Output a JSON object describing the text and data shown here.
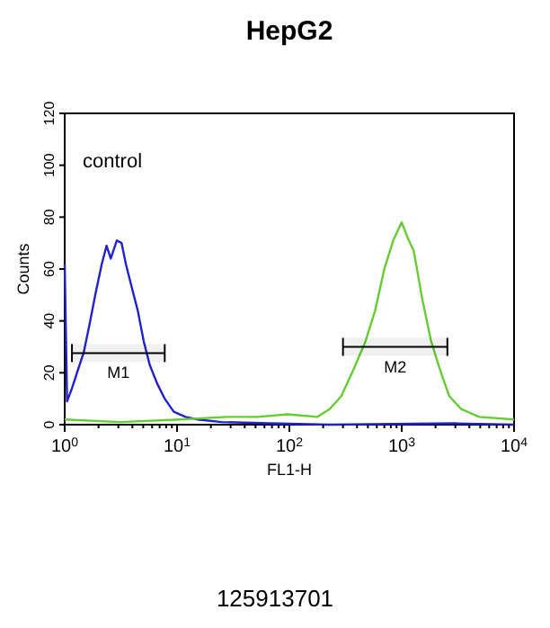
{
  "chart_data": {
    "type": "line",
    "title": "HepG2",
    "xlabel": "FL1-H",
    "ylabel": "Counts",
    "log": "x",
    "grid": false,
    "marker": "none",
    "line_style": "solid",
    "xlim": [
      1,
      10000
    ],
    "xticks": [
      {
        "value": 1,
        "label": "10$^{0}$"
      },
      {
        "value": 2,
        "label": null
      },
      {
        "value": 3,
        "label": null
      },
      {
        "value": 4,
        "label": null
      },
      {
        "value": 5,
        "label": null
      },
      {
        "value": 6,
        "label": null
      },
      {
        "value": 7,
        "label": null
      },
      {
        "value": 8,
        "label": null
      },
      {
        "value": 9,
        "label": null
      },
      {
        "value": 10,
        "label": "10$^{1}$"
      },
      {
        "value": 20,
        "label": null
      },
      {
        "value": 30,
        "label": null
      },
      {
        "value": 40,
        "label": null
      },
      {
        "value": 50,
        "label": null
      },
      {
        "value": 60,
        "label": null
      },
      {
        "value": 70,
        "label": null
      },
      {
        "value": 80,
        "label": null
      },
      {
        "value": 90,
        "label": null
      },
      {
        "value": 100,
        "label": "10$^{2}$"
      },
      {
        "value": 200,
        "label": null
      },
      {
        "value": 300,
        "label": null
      },
      {
        "value": 400,
        "label": null
      },
      {
        "value": 500,
        "label": null
      },
      {
        "value": 600,
        "label": null
      },
      {
        "value": 700,
        "label": null
      },
      {
        "value": 800,
        "label": null
      },
      {
        "value": 900,
        "label": null
      },
      {
        "value": 1000,
        "label": "10$^{3}$"
      },
      {
        "value": 2000,
        "label": null
      },
      {
        "value": 3000,
        "label": null
      },
      {
        "value": 4000,
        "label": null
      },
      {
        "value": 5000,
        "label": null
      },
      {
        "value": 6000,
        "label": null
      },
      {
        "value": 7000,
        "label": null
      },
      {
        "value": 8000,
        "label": null
      },
      {
        "value": 9000,
        "label": null
      },
      {
        "value": 10000,
        "label": "10$^{4}$"
      }
    ],
    "ylim": [
      0,
      120
    ],
    "yticks": [
      0,
      20,
      40,
      60,
      80,
      100,
      120
    ],
    "series": [
      {
        "color": "#2222cc",
        "x": [
          1,
          1.05,
          1.16,
          1.31,
          1.48,
          1.67,
          1.89,
          2.14,
          2.36,
          2.57,
          2.91,
          3.21,
          3.5,
          3.95,
          4.47,
          5.06,
          5.72,
          6.63,
          7.77,
          9.35,
          11.9,
          15.3,
          25,
          66,
          228,
          3000,
          10000
        ],
        "values": [
          62,
          9,
          14,
          21,
          28,
          39,
          51,
          62,
          69,
          64,
          71,
          70,
          62,
          53,
          44,
          32,
          23,
          16,
          10,
          5,
          3,
          2,
          1,
          0.5,
          0,
          0.5,
          0
        ]
      },
      {
        "color": "#66cc33",
        "x": [
          1,
          3.1,
          10.6,
          28,
          52,
          96,
          178,
          228,
          290,
          370,
          475,
          580,
          700,
          840,
          1000,
          1130,
          1280,
          1530,
          1830,
          2200,
          2650,
          3390,
          4900,
          10000
        ],
        "values": [
          2,
          1,
          2,
          3,
          3,
          4,
          3,
          6,
          11,
          21,
          32,
          44,
          60,
          71,
          78,
          72,
          67,
          48,
          32,
          21,
          11,
          6,
          3,
          2
        ]
      }
    ],
    "bands": [
      {
        "axis": "x",
        "from": 1.16,
        "to": 7.77,
        "label": "M1"
      },
      {
        "axis": "x",
        "from": 300,
        "to": 2550,
        "label": "M2"
      }
    ],
    "annotations": [
      "control",
      "125913701"
    ]
  }
}
